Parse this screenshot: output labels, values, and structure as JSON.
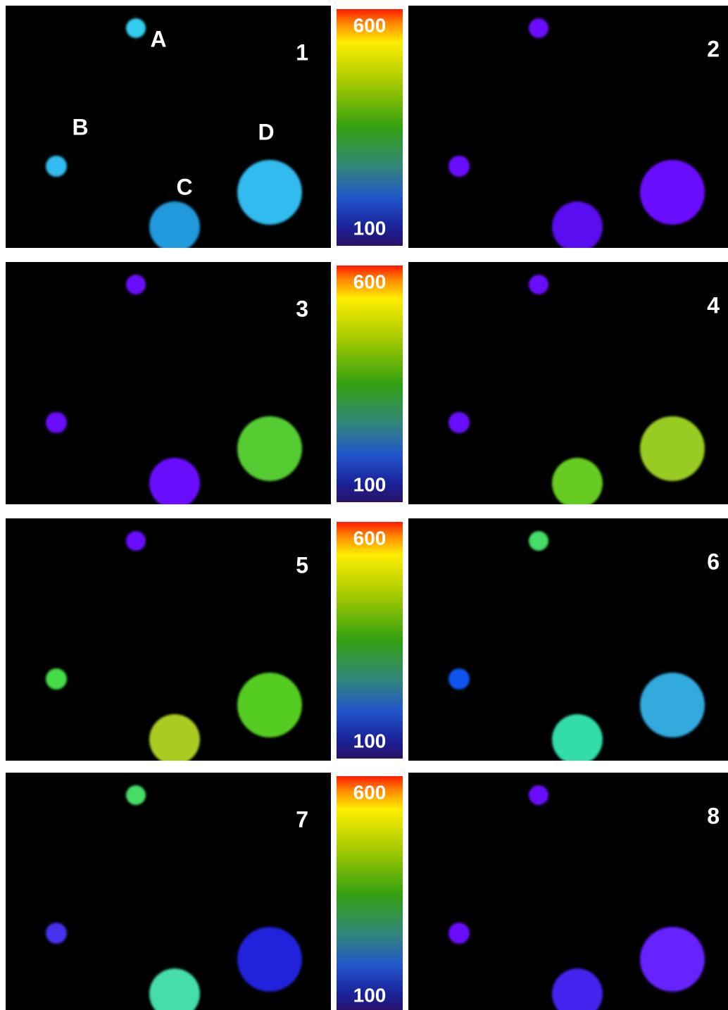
{
  "panels": [
    {
      "number": "1",
      "spots": [
        "A",
        "B",
        "C",
        "D"
      ]
    },
    {
      "number": "2"
    },
    {
      "number": "3"
    },
    {
      "number": "4"
    },
    {
      "number": "5"
    },
    {
      "number": "6"
    },
    {
      "number": "7"
    },
    {
      "number": "8"
    }
  ],
  "colorbars": [
    {
      "top": "600",
      "bottom": "100"
    },
    {
      "top": "600",
      "bottom": "100"
    },
    {
      "top": "600",
      "bottom": "100"
    },
    {
      "top": "600",
      "bottom": "100"
    }
  ]
}
